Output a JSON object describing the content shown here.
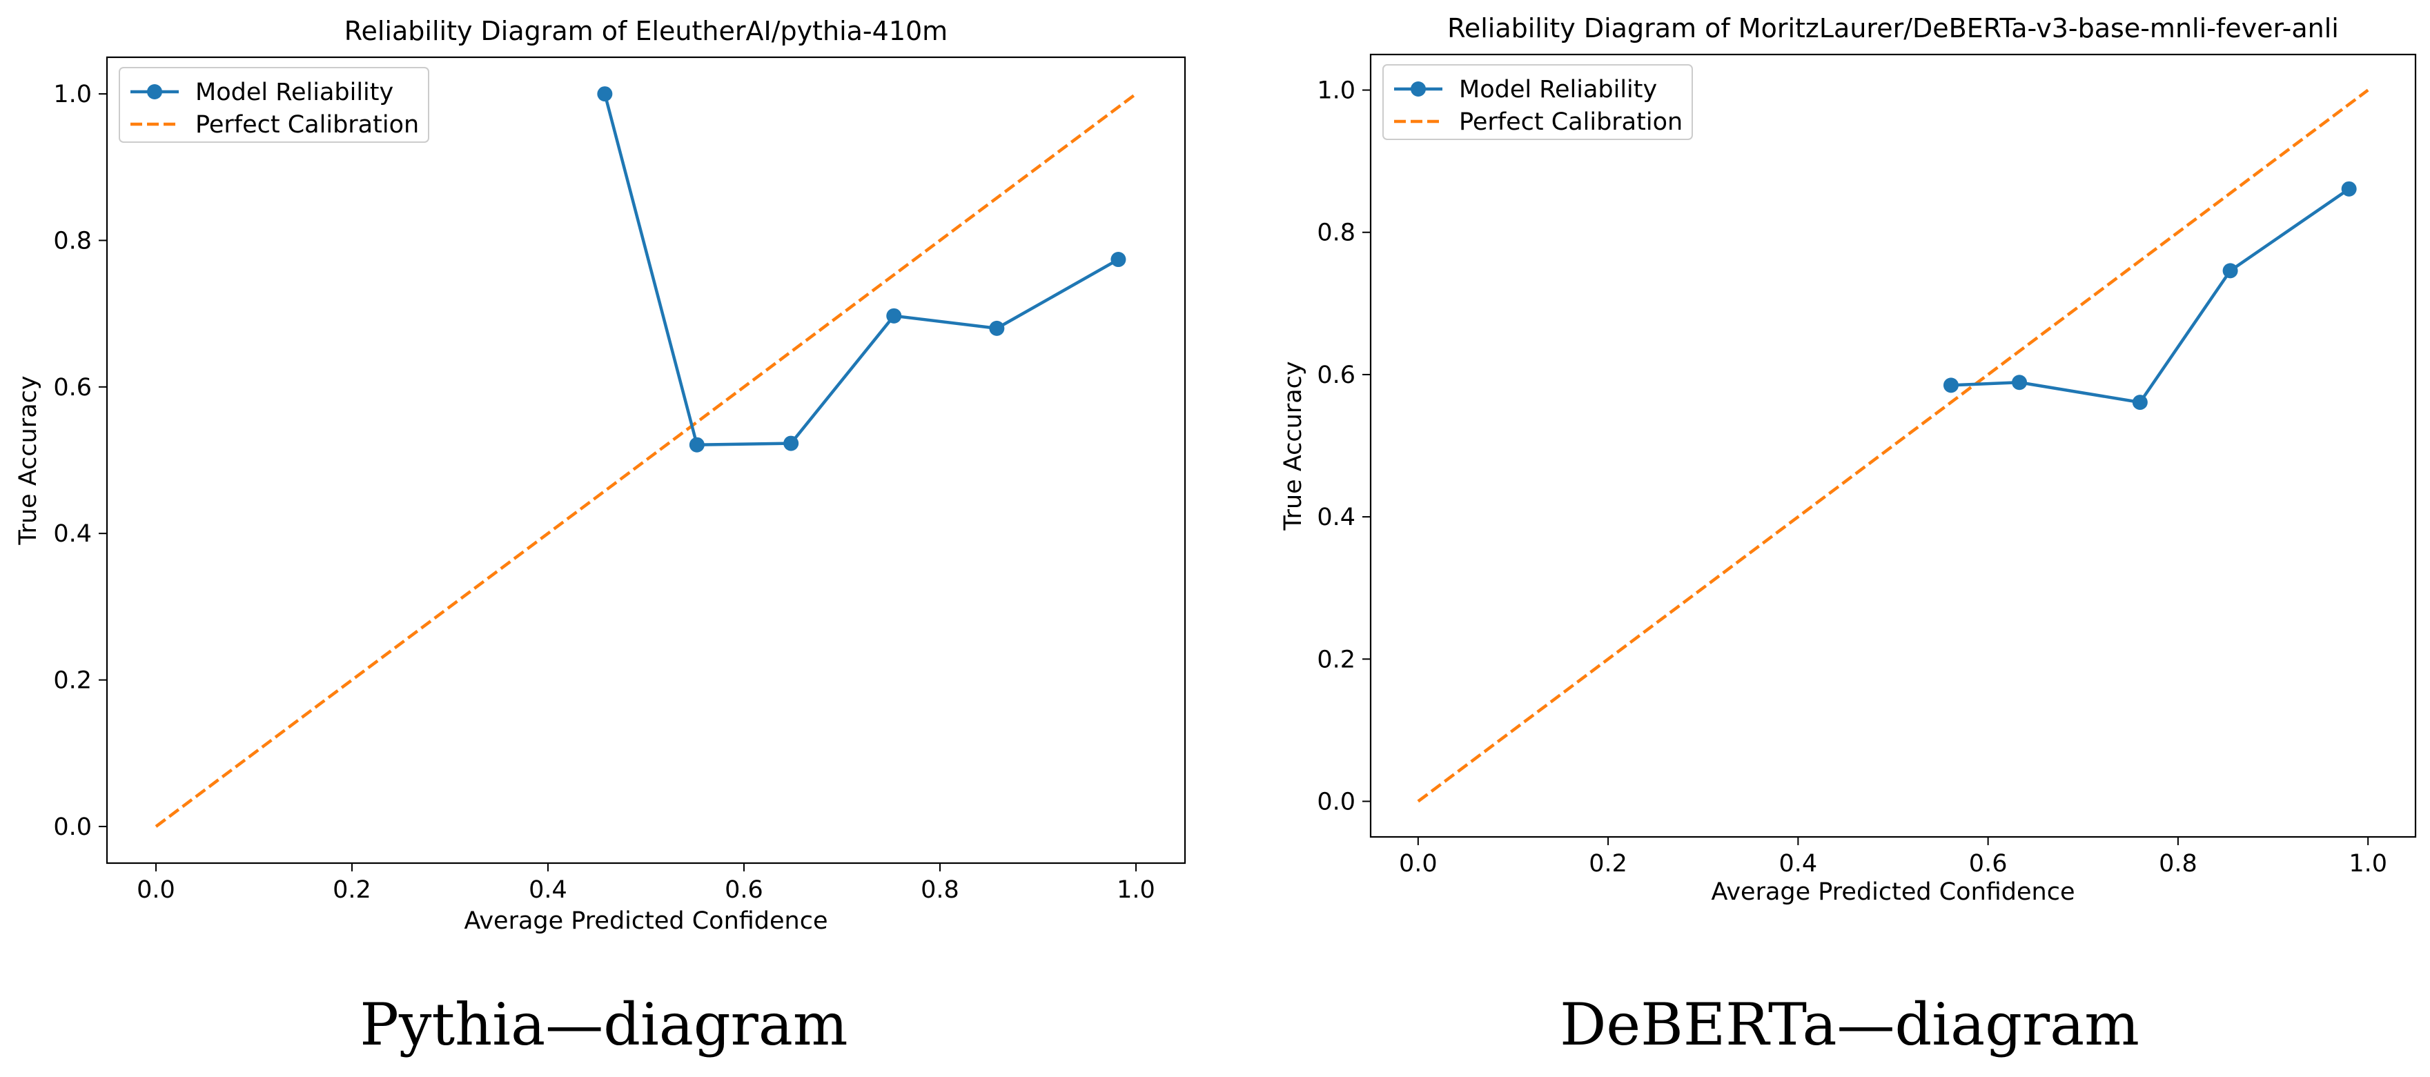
{
  "figure": {
    "colors": {
      "model": "#1f77b4",
      "perfect": "#ff7f0e",
      "axis": "#000000"
    },
    "captions": [
      "Pythia—diagram",
      "DeBERTa—diagram"
    ]
  },
  "chart_data": [
    {
      "type": "line",
      "title": "Reliability Diagram of EleutherAI/pythia-410m",
      "xlabel": "Average Predicted Confidence",
      "ylabel": "True Accuracy",
      "xlim": [
        -0.05,
        1.05
      ],
      "ylim": [
        -0.05,
        1.05
      ],
      "xticks": [
        0.0,
        0.2,
        0.4,
        0.6,
        0.8,
        1.0
      ],
      "xtick_labels": [
        "0.0",
        "0.2",
        "0.4",
        "0.6",
        "0.8",
        "1.0"
      ],
      "yticks": [
        0.0,
        0.2,
        0.4,
        0.6,
        0.8,
        1.0
      ],
      "ytick_labels": [
        "0.0",
        "0.2",
        "0.4",
        "0.6",
        "0.8",
        "1.0"
      ],
      "legend_position": "top-left",
      "series": [
        {
          "name": "Model Reliability",
          "style": "solid-markers",
          "x": [
            0.458,
            0.552,
            0.648,
            0.753,
            0.858,
            0.982
          ],
          "y": [
            1.0,
            0.521,
            0.523,
            0.697,
            0.68,
            0.774
          ]
        },
        {
          "name": "Perfect Calibration",
          "style": "dashed",
          "x": [
            0.0,
            1.0
          ],
          "y": [
            0.0,
            1.0
          ]
        }
      ]
    },
    {
      "type": "line",
      "title": "Reliability Diagram of MoritzLaurer/DeBERTa-v3-base-mnli-fever-anli",
      "xlabel": "Average Predicted Confidence",
      "ylabel": "True Accuracy",
      "xlim": [
        -0.05,
        1.05
      ],
      "ylim": [
        -0.05,
        1.05
      ],
      "xticks": [
        0.0,
        0.2,
        0.4,
        0.6,
        0.8,
        1.0
      ],
      "xtick_labels": [
        "0.0",
        "0.2",
        "0.4",
        "0.6",
        "0.8",
        "1.0"
      ],
      "yticks": [
        0.0,
        0.2,
        0.4,
        0.6,
        0.8,
        1.0
      ],
      "ytick_labels": [
        "0.0",
        "0.2",
        "0.4",
        "0.6",
        "0.8",
        "1.0"
      ],
      "legend_position": "top-left",
      "series": [
        {
          "name": "Model Reliability",
          "style": "solid-markers",
          "x": [
            0.561,
            0.633,
            0.76,
            0.855,
            0.98
          ],
          "y": [
            0.585,
            0.589,
            0.561,
            0.746,
            0.861
          ]
        },
        {
          "name": "Perfect Calibration",
          "style": "dashed",
          "x": [
            0.0,
            1.0
          ],
          "y": [
            0.0,
            1.0
          ]
        }
      ]
    }
  ]
}
